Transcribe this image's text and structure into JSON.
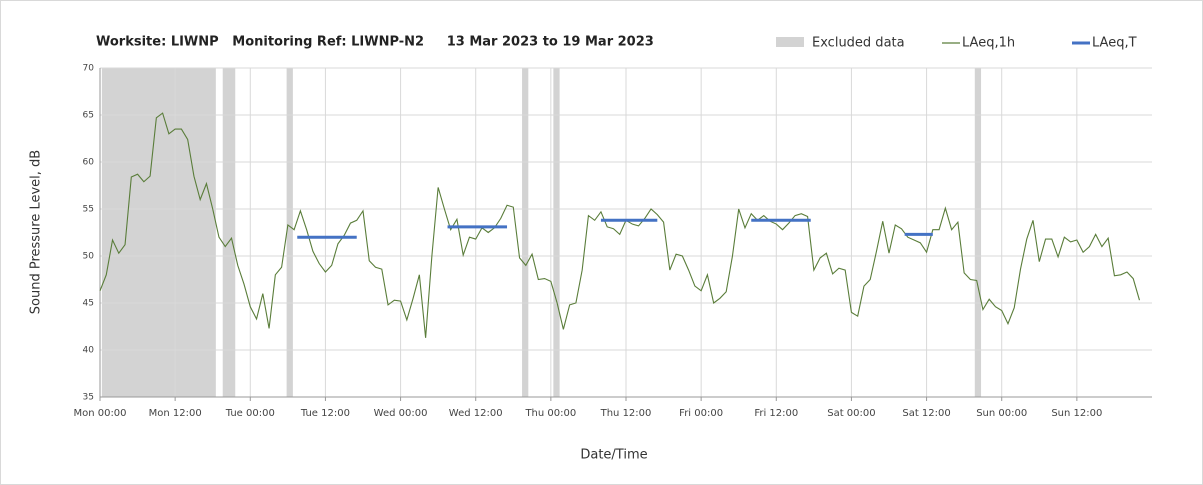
{
  "chart_data": {
    "type": "line",
    "title": "Worksite: LIWNP   Monitoring Ref: LIWNP-N2     13 Mar 2023 to 19 Mar 2023",
    "xlabel": "Date/Time",
    "ylabel": "Sound Pressure Level, dB",
    "xlim": [
      0,
      168
    ],
    "ylim": [
      35,
      70
    ],
    "xticks": [
      {
        "value": 0,
        "label": "Mon 00:00"
      },
      {
        "value": 12,
        "label": "Mon 12:00"
      },
      {
        "value": 24,
        "label": "Tue 00:00"
      },
      {
        "value": 36,
        "label": "Tue 12:00"
      },
      {
        "value": 48,
        "label": "Wed 00:00"
      },
      {
        "value": 60,
        "label": "Wed 12:00"
      },
      {
        "value": 72,
        "label": "Thu 00:00"
      },
      {
        "value": 84,
        "label": "Thu 12:00"
      },
      {
        "value": 96,
        "label": "Fri 00:00"
      },
      {
        "value": 108,
        "label": "Fri 12:00"
      },
      {
        "value": 120,
        "label": "Sat 00:00"
      },
      {
        "value": 132,
        "label": "Sat 12:00"
      },
      {
        "value": 144,
        "label": "Sun 00:00"
      },
      {
        "value": 156,
        "label": "Sun 12:00"
      }
    ],
    "yticks": [
      35,
      40,
      45,
      50,
      55,
      60,
      65,
      70
    ],
    "grid": true,
    "excluded": {
      "name": "Excluded data",
      "color": "#d3d3d3",
      "ranges": [
        [
          0.3,
          18.5
        ],
        [
          19.6,
          21.6
        ],
        [
          29.8,
          30.8
        ],
        [
          67.4,
          68.4
        ],
        [
          72.4,
          73.4
        ],
        [
          139.7,
          140.7
        ]
      ]
    },
    "x": [
      0,
      1,
      2,
      3,
      4,
      5,
      6,
      7,
      8,
      9,
      10,
      11,
      12,
      13,
      14,
      15,
      16,
      17,
      18,
      19,
      20,
      21,
      22,
      23,
      24,
      25,
      26,
      27,
      28,
      29,
      30,
      31,
      32,
      33,
      34,
      35,
      36,
      37,
      38,
      39,
      40,
      41,
      42,
      43,
      44,
      45,
      46,
      47,
      48,
      49,
      50,
      51,
      52,
      53,
      54,
      55,
      56,
      57,
      58,
      59,
      60,
      61,
      62,
      63,
      64,
      65,
      66,
      67,
      68,
      69,
      70,
      71,
      72,
      73,
      74,
      75,
      76,
      77,
      78,
      79,
      80,
      81,
      82,
      83,
      84,
      85,
      86,
      87,
      88,
      89,
      90,
      91,
      92,
      93,
      94,
      95,
      96,
      97,
      98,
      99,
      100,
      101,
      102,
      103,
      104,
      105,
      106,
      107,
      108,
      109,
      110,
      111,
      112,
      113,
      114,
      115,
      116,
      117,
      118,
      119,
      120,
      121,
      122,
      123,
      124,
      125,
      126,
      127,
      128,
      129,
      130,
      131,
      132,
      133,
      134,
      135,
      136,
      137,
      138,
      139,
      140,
      141,
      142,
      143,
      144,
      145,
      146,
      147,
      148,
      149,
      150,
      151,
      152,
      153,
      154,
      155,
      156,
      157,
      158,
      159,
      160,
      161,
      162,
      163,
      164,
      165,
      166
    ],
    "series": [
      {
        "name": "LAeq,1h",
        "color": "#5a7d3a",
        "values": [
          46.3,
          48,
          51.7,
          50.3,
          51.2,
          58.4,
          58.7,
          57.9,
          58.5,
          64.7,
          65.2,
          63,
          63.5,
          63.5,
          62.4,
          58.5,
          56,
          57.7,
          55,
          52,
          51,
          51.9,
          49,
          47,
          44.6,
          43.3,
          46,
          42.3,
          48,
          48.8,
          53.3,
          52.8,
          54.8,
          52.8,
          50.5,
          49.2,
          48.3,
          49,
          51.3,
          52.2,
          53.5,
          53.8,
          54.8,
          49.5,
          48.8,
          48.6,
          44.8,
          45.3,
          45.2,
          43.2,
          45.5,
          48,
          41.3,
          50,
          57.3,
          55,
          52.8,
          53.9,
          50.1,
          52,
          51.8,
          53,
          52.5,
          53,
          54,
          55.4,
          55.2,
          49.8,
          49,
          50.2,
          47.5,
          47.6,
          47.3,
          45,
          42.2,
          44.8,
          45,
          48.5,
          54.3,
          53.8,
          54.7,
          53.1,
          52.9,
          52.3,
          53.8,
          53.4,
          53.2,
          54,
          55,
          54.4,
          53.6,
          48.5,
          50.2,
          50,
          48.5,
          46.8,
          46.3,
          48,
          45,
          45.5,
          46.2,
          50,
          55,
          53,
          54.5,
          53.8,
          54.3,
          53.7,
          53.4,
          52.8,
          53.5,
          54.3,
          54.5,
          54.2,
          48.5,
          49.8,
          50.3,
          48.1,
          48.7,
          48.5,
          44,
          43.6,
          46.8,
          47.5,
          50.5,
          53.7,
          50.3,
          53.3,
          52.9,
          52,
          51.7,
          51.4,
          50.4,
          52.8,
          52.8,
          55.1,
          52.8,
          53.6,
          48.2,
          47.5,
          47.4,
          44.3,
          45.4,
          44.6,
          44.2,
          42.8,
          44.5,
          48.6,
          51.8,
          53.8,
          49.4,
          51.8,
          51.8,
          49.9,
          52,
          51.5,
          51.7,
          50.4,
          51,
          52.3,
          51,
          51.9,
          47.9,
          48,
          48.3,
          47.6,
          45.3
        ]
      },
      {
        "name": "LAeq,T",
        "color": "#4472c4",
        "segments": [
          {
            "start": 31.5,
            "end": 41,
            "value": 52
          },
          {
            "start": 55.5,
            "end": 65,
            "value": 53.1
          },
          {
            "start": 80,
            "end": 89,
            "value": 53.8
          },
          {
            "start": 104,
            "end": 113.5,
            "value": 53.8
          },
          {
            "start": 128.5,
            "end": 133,
            "value": 52.3
          }
        ]
      }
    ]
  }
}
